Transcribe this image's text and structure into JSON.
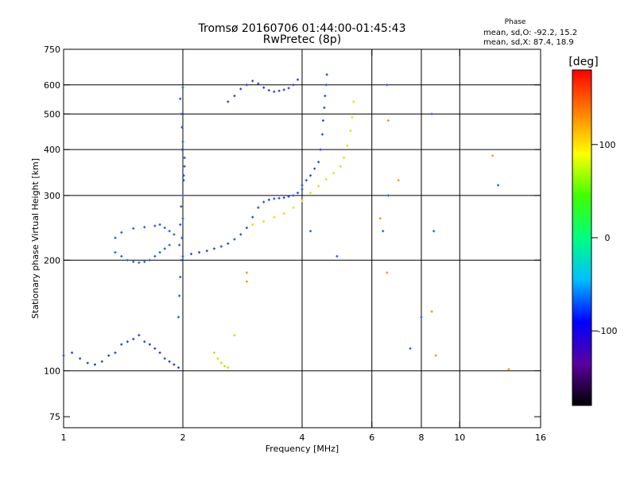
{
  "chart_data": {
    "type": "scatter",
    "title": "Tromsø 20160706 01:44:00-01:45:43",
    "subtitle": "RwPretec (8p)",
    "xlabel": "Frequency [MHz]",
    "ylabel": "Stationary phase Virtual Height [km]",
    "x_scale": "log",
    "y_scale": "log",
    "xlim": [
      1,
      16
    ],
    "ylim": [
      70,
      750
    ],
    "x_ticks": [
      "1",
      "2",
      "4",
      "6",
      "8",
      "10",
      "16"
    ],
    "x_tick_values": [
      1,
      2,
      4,
      6,
      8,
      10,
      16
    ],
    "y_ticks": [
      "75",
      "100",
      "200",
      "300",
      "400",
      "500",
      "600",
      "750"
    ],
    "y_tick_values": [
      75,
      100,
      200,
      300,
      400,
      500,
      600,
      750
    ],
    "grid_x": [
      2,
      4,
      6,
      8,
      10
    ],
    "grid_y": [
      100,
      200,
      300,
      400,
      500,
      600
    ],
    "phase_box": {
      "title": "Phase",
      "line1": "mean, sd,O: -92.2, 15.2",
      "line2": "mean, sd,X:  87.4, 18.9"
    },
    "colorbar": {
      "label": "[deg]",
      "ticks": [
        "100",
        "0",
        "-100"
      ],
      "tick_values": [
        100,
        0,
        -100
      ],
      "range": [
        -180,
        180
      ],
      "colors": [
        "#000000",
        "#5a00a0",
        "#0000ff",
        "#00bfff",
        "#00ff80",
        "#40ff00",
        "#ffff00",
        "#ff8000",
        "#ff0000"
      ]
    },
    "series": [
      {
        "trace": "o_low",
        "phase": -100,
        "color": "#1f3fdd",
        "x": [
          1.0,
          1.05,
          1.1,
          1.15,
          1.2,
          1.25,
          1.3,
          1.35,
          1.4,
          1.45,
          1.5,
          1.55,
          1.6,
          1.65,
          1.7,
          1.75,
          1.8,
          1.85,
          1.9,
          1.95
        ],
        "y": [
          110,
          112,
          108,
          105,
          104,
          106,
          110,
          112,
          118,
          120,
          122,
          125,
          120,
          118,
          115,
          112,
          108,
          106,
          104,
          102
        ]
      },
      {
        "trace": "o_lowe",
        "phase": -100,
        "color": "#2a55e8",
        "x": [
          1.35,
          1.4,
          1.45,
          1.5,
          1.55,
          1.6,
          1.65,
          1.7,
          1.75,
          1.8,
          1.85
        ],
        "y": [
          210,
          205,
          200,
          198,
          197,
          198,
          200,
          205,
          210,
          215,
          220
        ]
      },
      {
        "trace": "o_lowe2",
        "phase": -100,
        "color": "#2a55e8",
        "x": [
          1.35,
          1.4,
          1.5,
          1.6,
          1.7,
          1.75,
          1.8,
          1.85,
          1.9
        ],
        "y": [
          230,
          238,
          244,
          246,
          248,
          250,
          245,
          240,
          235
        ]
      },
      {
        "trace": "o_spread_col",
        "phase": -100,
        "color": "#1e50ff",
        "x": [
          1.95,
          1.96,
          1.97,
          1.98,
          1.99,
          2.0,
          2.0,
          2.01,
          2.02,
          2.0,
          1.99,
          1.98,
          1.97,
          2.0,
          2.01,
          1.98,
          1.97,
          1.96,
          1.99,
          2.02
        ],
        "y": [
          140,
          160,
          180,
          200,
          230,
          260,
          300,
          340,
          380,
          420,
          460,
          500,
          550,
          590,
          330,
          280,
          250,
          220,
          400,
          360
        ]
      },
      {
        "trace": "o_f2",
        "phase": -100,
        "color": "#2244ee",
        "x": [
          2.0,
          2.1,
          2.2,
          2.3,
          2.4,
          2.5,
          2.6,
          2.7,
          2.8,
          2.9,
          3.0,
          3.1,
          3.2,
          3.3,
          3.4,
          3.5,
          3.6,
          3.7,
          3.8,
          3.9,
          4.0
        ],
        "y": [
          205,
          208,
          210,
          212,
          215,
          218,
          222,
          228,
          235,
          245,
          262,
          278,
          288,
          292,
          294,
          295,
          296,
          298,
          300,
          305,
          312
        ]
      },
      {
        "trace": "o_upper",
        "phase": -100,
        "color": "#2244ee",
        "x": [
          4.0,
          4.1,
          4.2,
          4.3,
          4.4,
          4.45,
          4.5,
          4.52,
          4.55,
          4.57,
          4.6,
          4.62
        ],
        "y": [
          320,
          330,
          340,
          355,
          370,
          400,
          440,
          480,
          520,
          560,
          600,
          640
        ]
      },
      {
        "trace": "o_2hop",
        "phase": -100,
        "color": "#3a3ad0",
        "x": [
          2.6,
          2.7,
          2.8,
          2.9,
          3.0,
          3.1,
          3.2,
          3.3,
          3.4,
          3.5,
          3.6,
          3.7,
          3.8,
          3.9
        ],
        "y": [
          540,
          560,
          585,
          600,
          615,
          605,
          590,
          580,
          575,
          578,
          582,
          588,
          600,
          620
        ]
      },
      {
        "trace": "x_trace",
        "phase": 100,
        "color": "#e6e000",
        "x": [
          3.0,
          3.2,
          3.4,
          3.6,
          3.8,
          4.0,
          4.2,
          4.4,
          4.6,
          4.8,
          5.0,
          5.1,
          5.2,
          5.3,
          5.35,
          5.4
        ],
        "y": [
          250,
          255,
          262,
          268,
          278,
          290,
          305,
          318,
          332,
          345,
          360,
          380,
          410,
          450,
          490,
          540
        ]
      },
      {
        "trace": "x_low",
        "phase": 80,
        "color": "#c8e000",
        "x": [
          2.4,
          2.45,
          2.5,
          2.55,
          2.6,
          2.7
        ],
        "y": [
          112,
          108,
          105,
          103,
          102,
          125
        ]
      },
      {
        "trace": "scattered",
        "phase": -100,
        "color": "#2a55e8",
        "x": [
          4.2,
          4.9,
          6.55,
          6.6,
          8.5,
          8.6,
          12.5,
          6.4,
          7.5,
          8.0
        ],
        "y": [
          240,
          205,
          600,
          300,
          500,
          240,
          320,
          240,
          115,
          140
        ]
      },
      {
        "trace": "scattered_warm",
        "phase": 120,
        "color": "#e0a000",
        "x": [
          6.6,
          7.0,
          6.3,
          8.5,
          8.7,
          12.1,
          13.3,
          6.55,
          2.9,
          2.9
        ],
        "y": [
          480,
          330,
          260,
          145,
          110,
          385,
          101,
          185,
          185,
          175
        ]
      }
    ]
  }
}
